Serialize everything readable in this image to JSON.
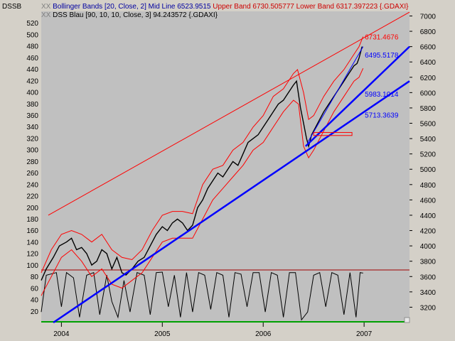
{
  "chart_data": {
    "type": "line",
    "symbol": "DSSB",
    "legend": [
      {
        "marker": "XX",
        "parts": [
          {
            "text": "Bollinger Bands [20, Close, 2] Mid Line 6523.9515 ",
            "color": "#0000a0"
          },
          {
            "text": "Upper Band 6730.505777 Lower Band 6317.397223 {.GDAXI}",
            "color": "#cc0000"
          }
        ]
      },
      {
        "marker": "XX",
        "parts": [
          {
            "text": "DSS Blau [90, 10, 10, Close, 3] 94.243572 {.GDAXI}",
            "color": "#000000"
          }
        ]
      }
    ],
    "colors": {
      "plot_bg": "#c0c0c0",
      "price": "#000000",
      "bands": "#ff0000",
      "trend": "#0000ff",
      "oscillator_ref": "#a00000",
      "oscillator_base": "#00a000",
      "annotation_red": "#ff0000",
      "annotation_blue": "#0000ff"
    },
    "x_axis": {
      "labels": [
        "2004",
        "2005",
        "2006",
        "2007"
      ],
      "xlim": [
        2003.8,
        2007.45
      ]
    },
    "left_axis": {
      "labels": [
        "20",
        "40",
        "60",
        "80",
        "100",
        "120",
        "140",
        "160",
        "180",
        "200",
        "220",
        "240",
        "260",
        "280",
        "300",
        "320",
        "340",
        "360",
        "380",
        "400",
        "420",
        "440",
        "460",
        "480",
        "500",
        "520"
      ],
      "ylim": [
        0,
        540
      ]
    },
    "right_axis": {
      "labels": [
        "3200",
        "3400",
        "3600",
        "3800",
        "4000",
        "4200",
        "4400",
        "4600",
        "4800",
        "5000",
        "5200",
        "5400",
        "5600",
        "5800",
        "6000",
        "6200",
        "6400",
        "6600",
        "6800",
        "7000"
      ],
      "ylim": [
        3000,
        7060
      ]
    },
    "price_points": [
      [
        2003.8,
        3550
      ],
      [
        2003.85,
        3700
      ],
      [
        2003.92,
        3850
      ],
      [
        2003.98,
        4000
      ],
      [
        2004.05,
        4050
      ],
      [
        2004.1,
        4100
      ],
      [
        2004.15,
        3950
      ],
      [
        2004.2,
        3980
      ],
      [
        2004.25,
        3900
      ],
      [
        2004.3,
        3750
      ],
      [
        2004.35,
        3800
      ],
      [
        2004.4,
        3950
      ],
      [
        2004.45,
        3900
      ],
      [
        2004.5,
        3700
      ],
      [
        2004.55,
        3850
      ],
      [
        2004.6,
        3650
      ],
      [
        2004.64,
        3620
      ],
      [
        2004.7,
        3700
      ],
      [
        2004.76,
        3800
      ],
      [
        2004.82,
        3850
      ],
      [
        2004.88,
        4000
      ],
      [
        2004.94,
        4150
      ],
      [
        2005.0,
        4250
      ],
      [
        2005.05,
        4200
      ],
      [
        2005.1,
        4300
      ],
      [
        2005.15,
        4350
      ],
      [
        2005.2,
        4300
      ],
      [
        2005.25,
        4200
      ],
      [
        2005.3,
        4270
      ],
      [
        2005.35,
        4500
      ],
      [
        2005.4,
        4600
      ],
      [
        2005.45,
        4750
      ],
      [
        2005.5,
        4850
      ],
      [
        2005.55,
        4950
      ],
      [
        2005.6,
        4900
      ],
      [
        2005.65,
        5000
      ],
      [
        2005.7,
        5100
      ],
      [
        2005.75,
        5050
      ],
      [
        2005.8,
        5200
      ],
      [
        2005.85,
        5350
      ],
      [
        2005.9,
        5400
      ],
      [
        2005.95,
        5450
      ],
      [
        2006.0,
        5550
      ],
      [
        2006.05,
        5650
      ],
      [
        2006.1,
        5750
      ],
      [
        2006.15,
        5850
      ],
      [
        2006.2,
        5900
      ],
      [
        2006.25,
        6000
      ],
      [
        2006.3,
        6100
      ],
      [
        2006.33,
        6150
      ],
      [
        2006.37,
        5800
      ],
      [
        2006.4,
        5600
      ],
      [
        2006.43,
        5400
      ],
      [
        2006.45,
        5300
      ],
      [
        2006.48,
        5450
      ],
      [
        2006.52,
        5550
      ],
      [
        2006.56,
        5650
      ],
      [
        2006.6,
        5750
      ],
      [
        2006.65,
        5850
      ],
      [
        2006.7,
        5950
      ],
      [
        2006.75,
        6050
      ],
      [
        2006.8,
        6150
      ],
      [
        2006.85,
        6250
      ],
      [
        2006.9,
        6350
      ],
      [
        2006.93,
        6380
      ],
      [
        2006.95,
        6450
      ],
      [
        2006.98,
        6600
      ]
    ],
    "upper_band_points": [
      [
        2003.8,
        3650
      ],
      [
        2003.9,
        3950
      ],
      [
        2004.0,
        4150
      ],
      [
        2004.1,
        4200
      ],
      [
        2004.2,
        4150
      ],
      [
        2004.3,
        4050
      ],
      [
        2004.4,
        4150
      ],
      [
        2004.5,
        3950
      ],
      [
        2004.6,
        3850
      ],
      [
        2004.7,
        3820
      ],
      [
        2004.8,
        3950
      ],
      [
        2004.9,
        4200
      ],
      [
        2005.0,
        4400
      ],
      [
        2005.1,
        4450
      ],
      [
        2005.2,
        4450
      ],
      [
        2005.3,
        4420
      ],
      [
        2005.4,
        4800
      ],
      [
        2005.5,
        5000
      ],
      [
        2005.6,
        5050
      ],
      [
        2005.7,
        5250
      ],
      [
        2005.8,
        5350
      ],
      [
        2005.9,
        5550
      ],
      [
        2006.0,
        5700
      ],
      [
        2006.1,
        5950
      ],
      [
        2006.2,
        6050
      ],
      [
        2006.3,
        6250
      ],
      [
        2006.34,
        6300
      ],
      [
        2006.4,
        6000
      ],
      [
        2006.45,
        5650
      ],
      [
        2006.5,
        5700
      ],
      [
        2006.6,
        5950
      ],
      [
        2006.7,
        6150
      ],
      [
        2006.8,
        6300
      ],
      [
        2006.9,
        6500
      ],
      [
        2006.95,
        6600
      ],
      [
        2006.99,
        6731
      ]
    ],
    "lower_band_points": [
      [
        2003.8,
        3350
      ],
      [
        2003.9,
        3600
      ],
      [
        2004.0,
        3850
      ],
      [
        2004.1,
        3950
      ],
      [
        2004.2,
        3800
      ],
      [
        2004.3,
        3600
      ],
      [
        2004.4,
        3700
      ],
      [
        2004.5,
        3500
      ],
      [
        2004.6,
        3450
      ],
      [
        2004.7,
        3550
      ],
      [
        2004.8,
        3650
      ],
      [
        2004.9,
        3850
      ],
      [
        2005.0,
        4050
      ],
      [
        2005.1,
        4100
      ],
      [
        2005.2,
        4100
      ],
      [
        2005.3,
        4100
      ],
      [
        2005.4,
        4350
      ],
      [
        2005.5,
        4600
      ],
      [
        2005.6,
        4750
      ],
      [
        2005.7,
        4900
      ],
      [
        2005.8,
        5050
      ],
      [
        2005.9,
        5250
      ],
      [
        2006.0,
        5350
      ],
      [
        2006.1,
        5550
      ],
      [
        2006.2,
        5750
      ],
      [
        2006.3,
        5900
      ],
      [
        2006.35,
        5850
      ],
      [
        2006.4,
        5300
      ],
      [
        2006.45,
        5150
      ],
      [
        2006.5,
        5250
      ],
      [
        2006.6,
        5500
      ],
      [
        2006.7,
        5750
      ],
      [
        2006.8,
        5950
      ],
      [
        2006.9,
        6150
      ],
      [
        2006.95,
        6200
      ],
      [
        2006.99,
        6317
      ]
    ],
    "oscillator_points": [
      [
        2003.8,
        20
      ],
      [
        2003.85,
        90
      ],
      [
        2003.95,
        95
      ],
      [
        2004.0,
        30
      ],
      [
        2004.05,
        95
      ],
      [
        2004.12,
        85
      ],
      [
        2004.18,
        10
      ],
      [
        2004.25,
        90
      ],
      [
        2004.32,
        95
      ],
      [
        2004.38,
        15
      ],
      [
        2004.45,
        90
      ],
      [
        2004.5,
        40
      ],
      [
        2004.56,
        10
      ],
      [
        2004.62,
        80
      ],
      [
        2004.68,
        20
      ],
      [
        2004.75,
        95
      ],
      [
        2004.82,
        90
      ],
      [
        2004.88,
        15
      ],
      [
        2004.94,
        95
      ],
      [
        2005.0,
        96
      ],
      [
        2005.06,
        30
      ],
      [
        2005.12,
        90
      ],
      [
        2005.18,
        10
      ],
      [
        2005.24,
        95
      ],
      [
        2005.3,
        20
      ],
      [
        2005.36,
        95
      ],
      [
        2005.42,
        90
      ],
      [
        2005.48,
        25
      ],
      [
        2005.54,
        95
      ],
      [
        2005.6,
        90
      ],
      [
        2005.66,
        10
      ],
      [
        2005.72,
        95
      ],
      [
        2005.78,
        92
      ],
      [
        2005.84,
        30
      ],
      [
        2005.9,
        95
      ],
      [
        2005.96,
        95
      ],
      [
        2006.02,
        20
      ],
      [
        2006.08,
        95
      ],
      [
        2006.14,
        90
      ],
      [
        2006.2,
        10
      ],
      [
        2006.26,
        95
      ],
      [
        2006.32,
        95
      ],
      [
        2006.38,
        5
      ],
      [
        2006.44,
        20
      ],
      [
        2006.5,
        90
      ],
      [
        2006.56,
        95
      ],
      [
        2006.62,
        30
      ],
      [
        2006.68,
        95
      ],
      [
        2006.74,
        90
      ],
      [
        2006.8,
        15
      ],
      [
        2006.86,
        95
      ],
      [
        2006.92,
        10
      ],
      [
        2006.96,
        95
      ],
      [
        2006.99,
        94
      ]
    ],
    "upper_channel_line": [
      [
        2003.87,
        4400
      ],
      [
        2007.45,
        7050
      ]
    ],
    "trend_lines": [
      [
        [
          2003.92,
          3000
        ],
        [
          2007.45,
          6150
        ]
      ],
      [
        [
          2006.42,
          5300
        ],
        [
          2007.45,
          6600
        ]
      ],
      [
        [
          2006.44,
          5350
        ],
        [
          2006.99,
          6600
        ]
      ]
    ],
    "support_zone": {
      "y1": 5440,
      "y2": 5480,
      "x1": 2006.5,
      "x2": 2006.88
    },
    "annotations": [
      {
        "text": "6731.4676",
        "color": "#ff0000",
        "x": 2007.0,
        "y": 6731
      },
      {
        "text": "6495.5178",
        "color": "#0000ff",
        "x": 2007.0,
        "y": 6495
      },
      {
        "text": "5983.1014",
        "color": "#0000ff",
        "x": 2007.0,
        "y": 5983
      },
      {
        "text": "5713.3639",
        "color": "#0000ff",
        "x": 2007.0,
        "y": 5713
      }
    ],
    "oscillator_ref_level": 100,
    "oscillator_base_level": 0
  }
}
